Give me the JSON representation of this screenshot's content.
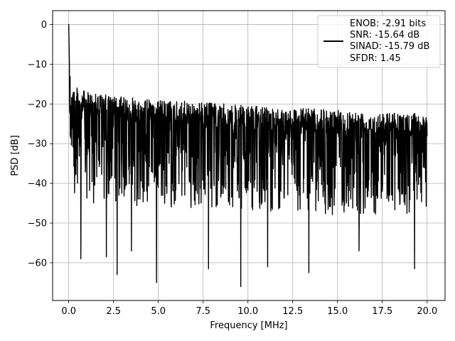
{
  "chart_data": {
    "type": "line",
    "title": "",
    "xlabel": "Frequency [MHz]",
    "ylabel": "PSD [dB]",
    "xlim": [
      -0.9,
      21.0
    ],
    "ylim": [
      -69.5,
      3.5
    ],
    "xticks": [
      0.0,
      2.5,
      5.0,
      7.5,
      10.0,
      12.5,
      15.0,
      17.5,
      20.0
    ],
    "xtick_labels": [
      "0.0",
      "2.5",
      "5.0",
      "7.5",
      "10.0",
      "12.5",
      "15.0",
      "17.5",
      "20.0"
    ],
    "yticks": [
      0,
      -10,
      -20,
      -30,
      -40,
      -50,
      -60
    ],
    "ytick_labels": [
      "0",
      "−10",
      "−20",
      "−30",
      "−40",
      "−50",
      "−60"
    ],
    "grid": true,
    "legend_position": "upper-right",
    "legend_lines": [
      "ENOB: -2.91 bits",
      "SNR: -15.64 dB",
      "SINAD: -15.79 dB",
      "SFDR: 1.45"
    ],
    "series": [
      {
        "color": "#000000",
        "x_range": [
          0.0,
          20.0
        ],
        "peak": {
          "x": 0.0,
          "y": 0.0
        },
        "upper_envelope": [
          [
            0.0,
            0.0
          ],
          [
            0.05,
            -8
          ],
          [
            0.15,
            -14.5
          ],
          [
            0.5,
            -16
          ],
          [
            1.0,
            -17
          ],
          [
            2.5,
            -18
          ],
          [
            5.0,
            -19
          ],
          [
            7.5,
            -19.5
          ],
          [
            10.0,
            -20.5
          ],
          [
            12.5,
            -21
          ],
          [
            15.0,
            -21.5
          ],
          [
            17.5,
            -22
          ],
          [
            20.0,
            -22.5
          ]
        ],
        "typical_floor": [
          [
            0.0,
            -40
          ],
          [
            5.0,
            -41
          ],
          [
            10.0,
            -42
          ],
          [
            15.0,
            -43
          ],
          [
            20.0,
            -43
          ]
        ],
        "deep_nulls": [
          [
            0.67,
            -59
          ],
          [
            2.1,
            -58.5
          ],
          [
            2.7,
            -63
          ],
          [
            3.5,
            -57
          ],
          [
            4.9,
            -65
          ],
          [
            7.8,
            -61.5
          ],
          [
            9.6,
            -66
          ],
          [
            11.1,
            -61
          ],
          [
            13.4,
            -62.5
          ],
          [
            16.2,
            -57
          ],
          [
            19.3,
            -61.5
          ]
        ]
      }
    ]
  }
}
